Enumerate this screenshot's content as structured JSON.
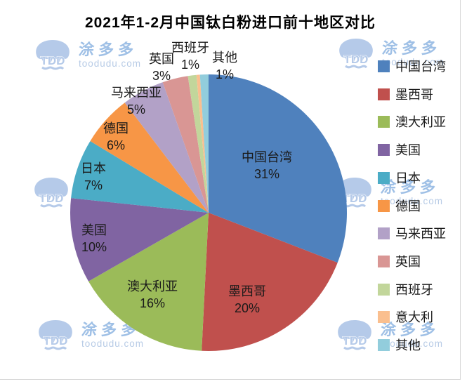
{
  "chart_data": {
    "type": "pie",
    "title": "2021年1-2月中国钛白粉进口前十地区对比",
    "legend_position": "right",
    "start_angle_deg": 0,
    "direction": "clockwise",
    "slices": [
      {
        "name": "中国台湾",
        "value": 31,
        "percent_label": "31%",
        "color": "#4F81BD",
        "label_shown": true
      },
      {
        "name": "墨西哥",
        "value": 20,
        "percent_label": "20%",
        "color": "#C0504D",
        "label_shown": true
      },
      {
        "name": "澳大利亚",
        "value": 16,
        "percent_label": "16%",
        "color": "#9BBB59",
        "label_shown": true
      },
      {
        "name": "美国",
        "value": 10,
        "percent_label": "10%",
        "color": "#8064A2",
        "label_shown": true
      },
      {
        "name": "日本",
        "value": 7,
        "percent_label": "7%",
        "color": "#4BACC6",
        "label_shown": true
      },
      {
        "name": "德国",
        "value": 6,
        "percent_label": "6%",
        "color": "#F79646",
        "label_shown": true
      },
      {
        "name": "马来西亚",
        "value": 5,
        "percent_label": "5%",
        "color": "#B2A1C7",
        "label_shown": true
      },
      {
        "name": "英国",
        "value": 3,
        "percent_label": "3%",
        "color": "#D99694",
        "label_shown": true
      },
      {
        "name": "西班牙",
        "value": 1,
        "percent_label": "1%",
        "color": "#C2D69B",
        "label_shown": true
      },
      {
        "name": "意大利",
        "value": 0.4,
        "percent_label": "",
        "color": "#FABF8F",
        "label_shown": false
      },
      {
        "name": "其他",
        "value": 1,
        "percent_label": "1%",
        "color": "#92CDDC",
        "label_shown": true
      }
    ]
  },
  "watermark": {
    "logo_text": "TDD",
    "brand": "涂多多",
    "domain": "toodudu.com",
    "color": "#b5cae9"
  }
}
